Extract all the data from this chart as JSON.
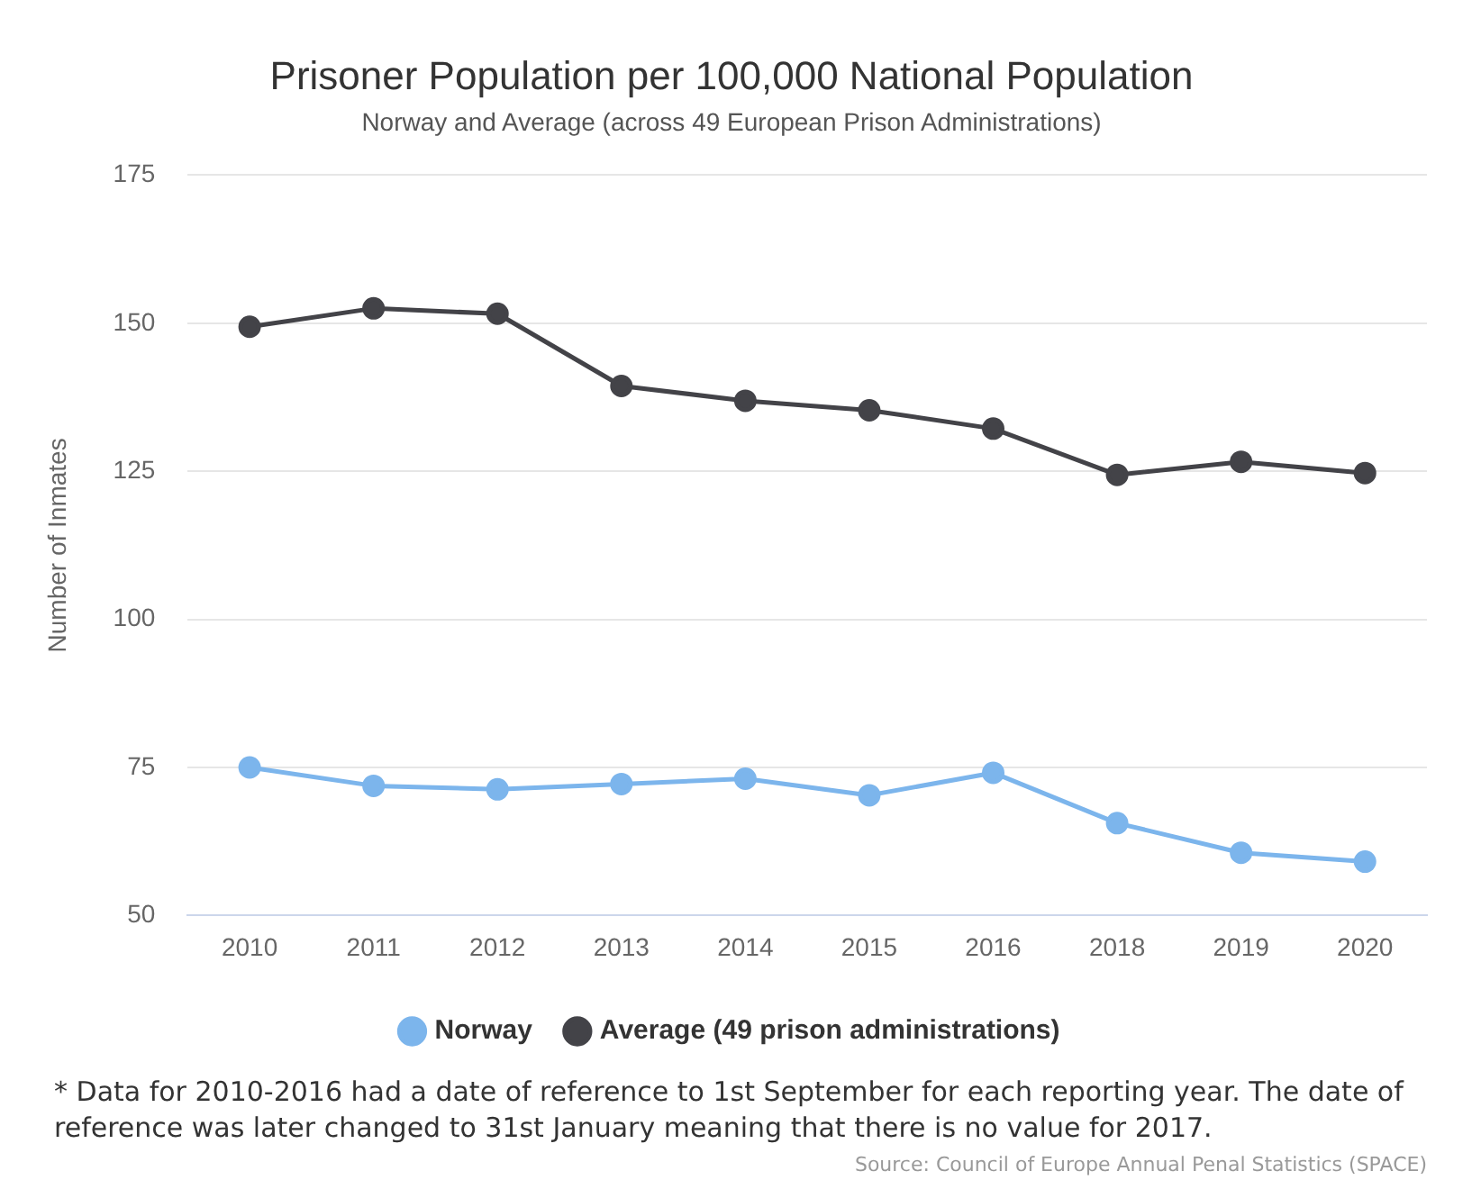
{
  "chart_data": {
    "type": "line",
    "title": "Prisoner Population per 100,000 National Population",
    "subtitle": "Norway and Average (across 49 European Prison Administrations)",
    "ylabel": "Number of Inmates",
    "categories": [
      "2010",
      "2011",
      "2012",
      "2013",
      "2014",
      "2015",
      "2016",
      "2018",
      "2019",
      "2020"
    ],
    "series": [
      {
        "name": "Norway",
        "color": "#7cb5ec",
        "values": [
          75,
          71.9,
          71.3,
          72.2,
          73.1,
          70.3,
          74.1,
          65.6,
          60.6,
          59.1
        ]
      },
      {
        "name": "Average (49 prison administrations)",
        "color": "#434348",
        "values": [
          149.4,
          152.5,
          151.6,
          139.4,
          136.9,
          135.3,
          132.2,
          124.4,
          126.6,
          124.7
        ]
      }
    ],
    "ylim": [
      50,
      175
    ],
    "yticks": [
      50,
      75,
      100,
      125,
      150,
      175
    ],
    "grid": "y",
    "legend": "bottom",
    "marker": "circle",
    "line_style": "solid",
    "annotations": [
      "* Data for 2010-2016 had a date of reference to 1st September for each reporting year. The date of reference was later changed to 31st January meaning that there is no value for 2017.",
      "Source: Council of Europe Annual Penal Statistics (SPACE)"
    ]
  }
}
